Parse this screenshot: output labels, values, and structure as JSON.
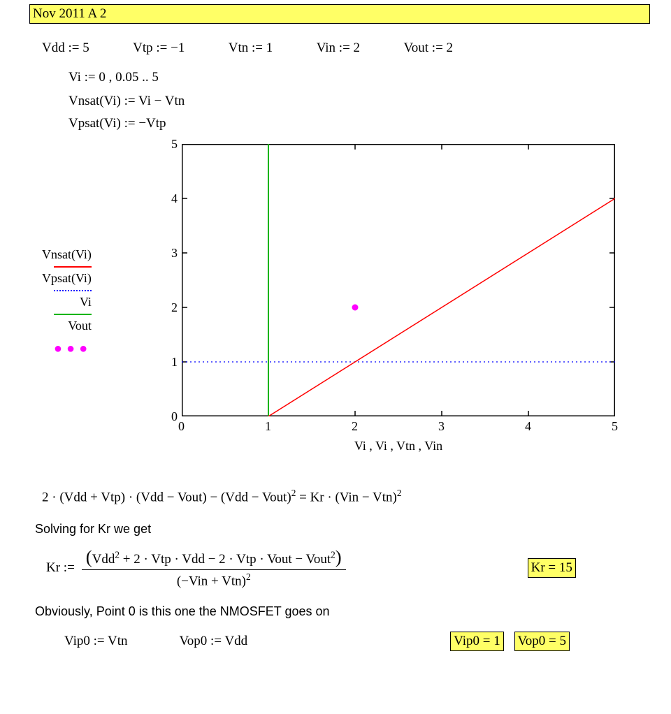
{
  "title": "Nov 2011 A 2",
  "assigns": {
    "vdd": "Vdd := 5",
    "vtp": "Vtp := −1",
    "vtn": "Vtn := 1",
    "vin": "Vin := 2",
    "vout": "Vout := 2"
  },
  "vi_range": "Vi := 0 , 0.05 .. 5",
  "vnsat_def": "Vnsat(Vi) := Vi − Vtn",
  "vpsat_def": "Vpsat(Vi) := −Vtp",
  "chart": {
    "type": "line",
    "xlim": [
      0,
      5
    ],
    "ylim": [
      0,
      5
    ],
    "xtick_step": 1,
    "ytick_step": 1,
    "background_color": "#ffffff",
    "frame_color": "#000000",
    "frame_width": 2,
    "tick_length": 8,
    "x_ticks": [
      0,
      1,
      2,
      3,
      4,
      5
    ],
    "y_ticks": [
      0,
      1,
      2,
      3,
      4,
      5
    ],
    "x_label": "Vi , Vi , Vtn , Vin",
    "legend_labels": [
      "Vnsat(Vi)",
      "Vpsat(Vi)",
      "Vi",
      "Vout"
    ],
    "series": {
      "vnsat": {
        "label": "Vnsat(Vi)",
        "color": "#ff0000",
        "style": "solid",
        "width": 1.5,
        "points": [
          [
            1,
            0
          ],
          [
            5,
            4
          ]
        ]
      },
      "vpsat": {
        "label": "Vpsat(Vi)",
        "color": "#0000ff",
        "style": "dotted",
        "width": 1.2,
        "points": [
          [
            0,
            1
          ],
          [
            5,
            1
          ]
        ]
      },
      "vi": {
        "label": "Vi",
        "color": "#00b400",
        "style": "solid",
        "width": 2,
        "points": [
          [
            1,
            0
          ],
          [
            1,
            5
          ]
        ]
      },
      "vout_point": {
        "label": "Vout",
        "color": "#ff00ff",
        "style": "marker",
        "marker": "dot",
        "marker_size": 7,
        "point": [
          2,
          2
        ]
      }
    }
  },
  "equation_line": "2 · (Vdd + Vtp) · (Vdd − Vout) − (Vdd − Vout)² = Kr · (Vin − Vtn)²",
  "eq_parts": {
    "p1": "2 · (Vdd + Vtp) · (Vdd − Vout) − (Vdd − Vout)",
    "p2": "2",
    "p3": " = Kr · (Vin − Vtn)",
    "p4": "2"
  },
  "solving_text": "Solving for Kr we get",
  "kr_lhs": "Kr :=",
  "kr_num_parts": {
    "open": "(",
    "t1": "Vdd",
    "s1": "2",
    "t2": " + 2 · Vtp · Vdd − 2 · Vtp · Vout − Vout",
    "s2": "2",
    "close": ")"
  },
  "kr_den_parts": {
    "t1": "(−Vin + Vtn)",
    "s1": "2"
  },
  "kr_result": "Kr = 15",
  "obvious_text": "Obviously, Point 0 is this one the NMOSFET goes on",
  "vip0_assign": "Vip0 := Vtn",
  "vop0_assign": "Vop0 := Vdd",
  "vip0_result": "Vip0 = 1",
  "vop0_result": "Vop0 = 5"
}
